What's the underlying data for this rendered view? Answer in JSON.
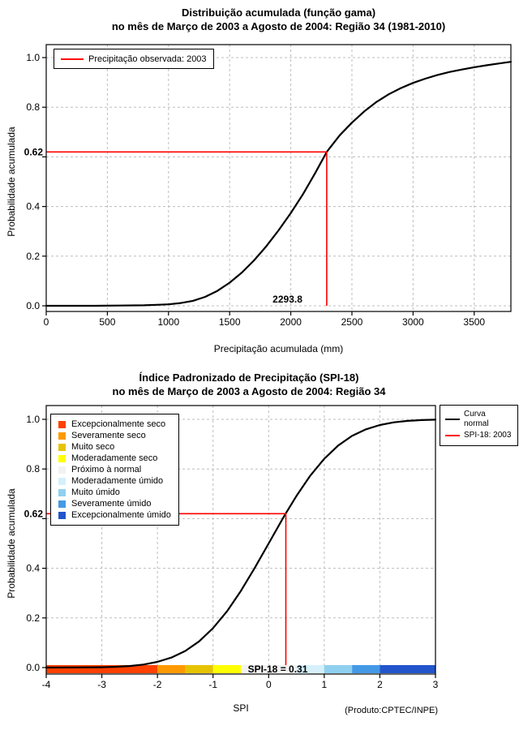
{
  "chart_data": [
    {
      "type": "line",
      "title": "Distribuição acumulada (função gama)",
      "subtitle": "no mês de Março de 2003 a Agosto de 2004: Região 34 (1981-2010)",
      "xlabel": "Precipitação acumulada (mm)",
      "ylabel": "Probabilidade acumulada",
      "xlim": [
        0,
        3800
      ],
      "ylim": [
        0,
        1
      ],
      "grid": true,
      "xticks": {
        "values": [
          0,
          500,
          1000,
          1500,
          2000,
          2500,
          3000,
          3500
        ],
        "labels": [
          "0",
          "500",
          "1000",
          "1500",
          "2000",
          "2500",
          "3000",
          "3500"
        ]
      },
      "yticks": {
        "values": [
          0,
          0.2,
          0.4,
          0.6,
          0.8,
          1
        ],
        "labels": [
          "0.0",
          "0.2",
          "0.4",
          "",
          "0.8",
          "1.0"
        ]
      },
      "legend": {
        "position": "top-left",
        "entries": [
          {
            "label": "Precipitação observada: 2003",
            "color": "#ff0000",
            "type": "line"
          }
        ]
      },
      "series": [
        {
          "name": "Distribuição gama acumulada",
          "color": "#000000",
          "points": [
            [
              0,
              0
            ],
            [
              400,
              0
            ],
            [
              600,
              0.001
            ],
            [
              800,
              0.002
            ],
            [
              900,
              0.004
            ],
            [
              1000,
              0.006
            ],
            [
              1100,
              0.011
            ],
            [
              1200,
              0.02
            ],
            [
              1300,
              0.036
            ],
            [
              1400,
              0.06
            ],
            [
              1500,
              0.093
            ],
            [
              1600,
              0.134
            ],
            [
              1700,
              0.183
            ],
            [
              1800,
              0.24
            ],
            [
              1900,
              0.304
            ],
            [
              2000,
              0.374
            ],
            [
              2100,
              0.45
            ],
            [
              2200,
              0.535
            ],
            [
              2293.8,
              0.62
            ],
            [
              2400,
              0.687
            ],
            [
              2500,
              0.738
            ],
            [
              2600,
              0.783
            ],
            [
              2700,
              0.821
            ],
            [
              2800,
              0.852
            ],
            [
              2900,
              0.877
            ],
            [
              3000,
              0.898
            ],
            [
              3100,
              0.915
            ],
            [
              3200,
              0.93
            ],
            [
              3300,
              0.942
            ],
            [
              3400,
              0.952
            ],
            [
              3500,
              0.961
            ],
            [
              3600,
              0.969
            ],
            [
              3700,
              0.976
            ],
            [
              3800,
              0.983
            ]
          ]
        }
      ],
      "marker": {
        "x": 2293.8,
        "y": 0.62,
        "color": "#ff0000",
        "x_label": "2293.8",
        "y_label": "0.62"
      }
    },
    {
      "type": "line",
      "title": "Índice Padronizado de Precipitação (SPI-18)",
      "subtitle": "no mês de Março de 2003 a Agosto de 2004: Região 34",
      "xlabel": "SPI",
      "ylabel": "Probabilidade acumulada",
      "footnote": "(Produto:CPTEC/INPE)",
      "xlim": [
        -4,
        3
      ],
      "ylim": [
        0,
        1
      ],
      "grid": true,
      "xticks": {
        "values": [
          -4,
          -3,
          -2,
          -1,
          0,
          1,
          2,
          3
        ],
        "labels": [
          "-4",
          "-3",
          "-2",
          "-1",
          "0",
          "1",
          "2",
          "3"
        ]
      },
      "yticks": {
        "values": [
          0,
          0.2,
          0.4,
          0.6,
          0.8,
          1
        ],
        "labels": [
          "0.0",
          "0.2",
          "0.4",
          "",
          "0.8",
          "1.0"
        ]
      },
      "legend": {
        "position": "top-right",
        "entries": [
          {
            "label": "Curva\nnormal",
            "color": "#000000",
            "type": "line"
          },
          {
            "label": "SPI-18: 2003",
            "color": "#ff0000",
            "type": "line"
          }
        ]
      },
      "category_legend": [
        {
          "label": "Excepcionalmente seco",
          "color": "#ff4000",
          "range": [
            -4,
            -2
          ]
        },
        {
          "label": "Severamente seco",
          "color": "#ff9900",
          "range": [
            -2,
            -1.5
          ]
        },
        {
          "label": "Muito seco",
          "color": "#e6c300",
          "range": [
            -1.5,
            -1
          ]
        },
        {
          "label": "Moderadamente seco",
          "color": "#ffff00",
          "range": [
            -1,
            -0.5
          ]
        },
        {
          "label": "Próximo à normal",
          "color": "#f2f2f2",
          "range": [
            -0.5,
            0.5
          ]
        },
        {
          "label": "Moderadamente úmido",
          "color": "#d5f0fa",
          "range": [
            0.5,
            1
          ]
        },
        {
          "label": "Muito úmido",
          "color": "#8fd0f0",
          "range": [
            1,
            1.5
          ]
        },
        {
          "label": "Severamente úmido",
          "color": "#4499e6",
          "range": [
            1.5,
            2
          ]
        },
        {
          "label": "Excepcionalmente úmido",
          "color": "#2255cc",
          "range": [
            2,
            3
          ]
        }
      ],
      "series": [
        {
          "name": "Curva normal",
          "color": "#000000",
          "points": [
            [
              -4,
              0.0
            ],
            [
              -3.5,
              0.0002
            ],
            [
              -3,
              0.0013
            ],
            [
              -2.75,
              0.003
            ],
            [
              -2.5,
              0.0062
            ],
            [
              -2.25,
              0.0122
            ],
            [
              -2,
              0.0228
            ],
            [
              -1.75,
              0.0401
            ],
            [
              -1.5,
              0.0668
            ],
            [
              -1.25,
              0.1056
            ],
            [
              -1,
              0.1587
            ],
            [
              -0.75,
              0.2266
            ],
            [
              -0.5,
              0.3085
            ],
            [
              -0.25,
              0.4013
            ],
            [
              0,
              0.5
            ],
            [
              0.25,
              0.5987
            ],
            [
              0.31,
              0.6217
            ],
            [
              0.5,
              0.6915
            ],
            [
              0.75,
              0.7734
            ],
            [
              1,
              0.8413
            ],
            [
              1.25,
              0.8944
            ],
            [
              1.5,
              0.9332
            ],
            [
              1.75,
              0.9599
            ],
            [
              2,
              0.9772
            ],
            [
              2.25,
              0.9878
            ],
            [
              2.5,
              0.9938
            ],
            [
              2.75,
              0.997
            ],
            [
              3,
              0.9987
            ]
          ]
        }
      ],
      "marker": {
        "x": 0.31,
        "y": 0.62,
        "color": "#ff0000",
        "x_label": "SPI-18 = 0.31",
        "y_label": "0.62"
      }
    }
  ]
}
